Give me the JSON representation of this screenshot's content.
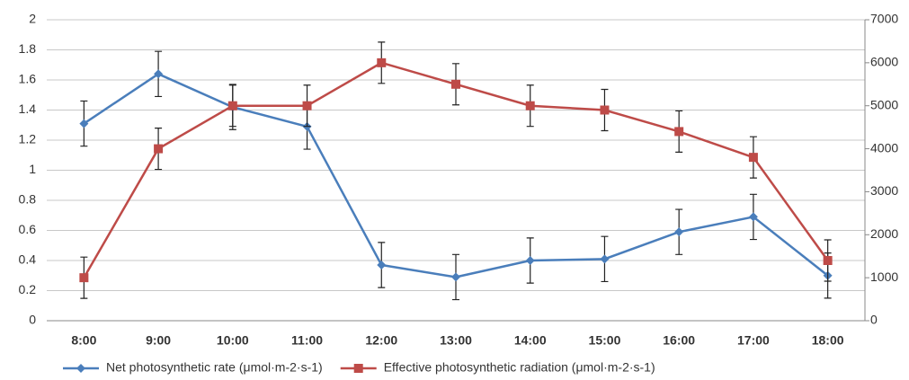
{
  "chart_data": {
    "type": "line",
    "categories": [
      "8:00",
      "9:00",
      "10:00",
      "11:00",
      "12:00",
      "13:00",
      "14:00",
      "15:00",
      "16:00",
      "17:00",
      "18:00"
    ],
    "series": [
      {
        "name": "Net photosynthetic rate (μmol·m-2·s-1)",
        "color": "#4a7ebb",
        "marker": "diamond",
        "values": [
          1.31,
          1.64,
          1.42,
          1.29,
          0.37,
          0.29,
          0.4,
          0.41,
          0.59,
          0.69,
          0.3
        ],
        "errors": [
          0.15,
          0.15,
          0.15,
          0.15,
          0.15,
          0.15,
          0.15,
          0.15,
          0.15,
          0.15,
          0.15
        ]
      },
      {
        "name": "Effective photosynthetic radiation (μmol·m-2·s-1)",
        "color": "#be4b48",
        "marker": "square",
        "axis": "y2",
        "values": [
          1000,
          4000,
          5000,
          5000,
          6000,
          5500,
          5000,
          4900,
          4400,
          3800,
          1400
        ],
        "errors": [
          480,
          480,
          480,
          480,
          480,
          480,
          480,
          480,
          480,
          480,
          480
        ]
      }
    ],
    "ylim": [
      0,
      2
    ],
    "yticks": [
      0,
      0.2,
      0.4,
      0.6,
      0.8,
      1,
      1.2,
      1.4,
      1.6,
      1.8,
      2
    ],
    "y2lim": [
      0,
      7000
    ],
    "y2ticks": [
      0,
      1000,
      2000,
      3000,
      4000,
      5000,
      6000,
      7000
    ],
    "grid": true,
    "legend": "bottom"
  }
}
